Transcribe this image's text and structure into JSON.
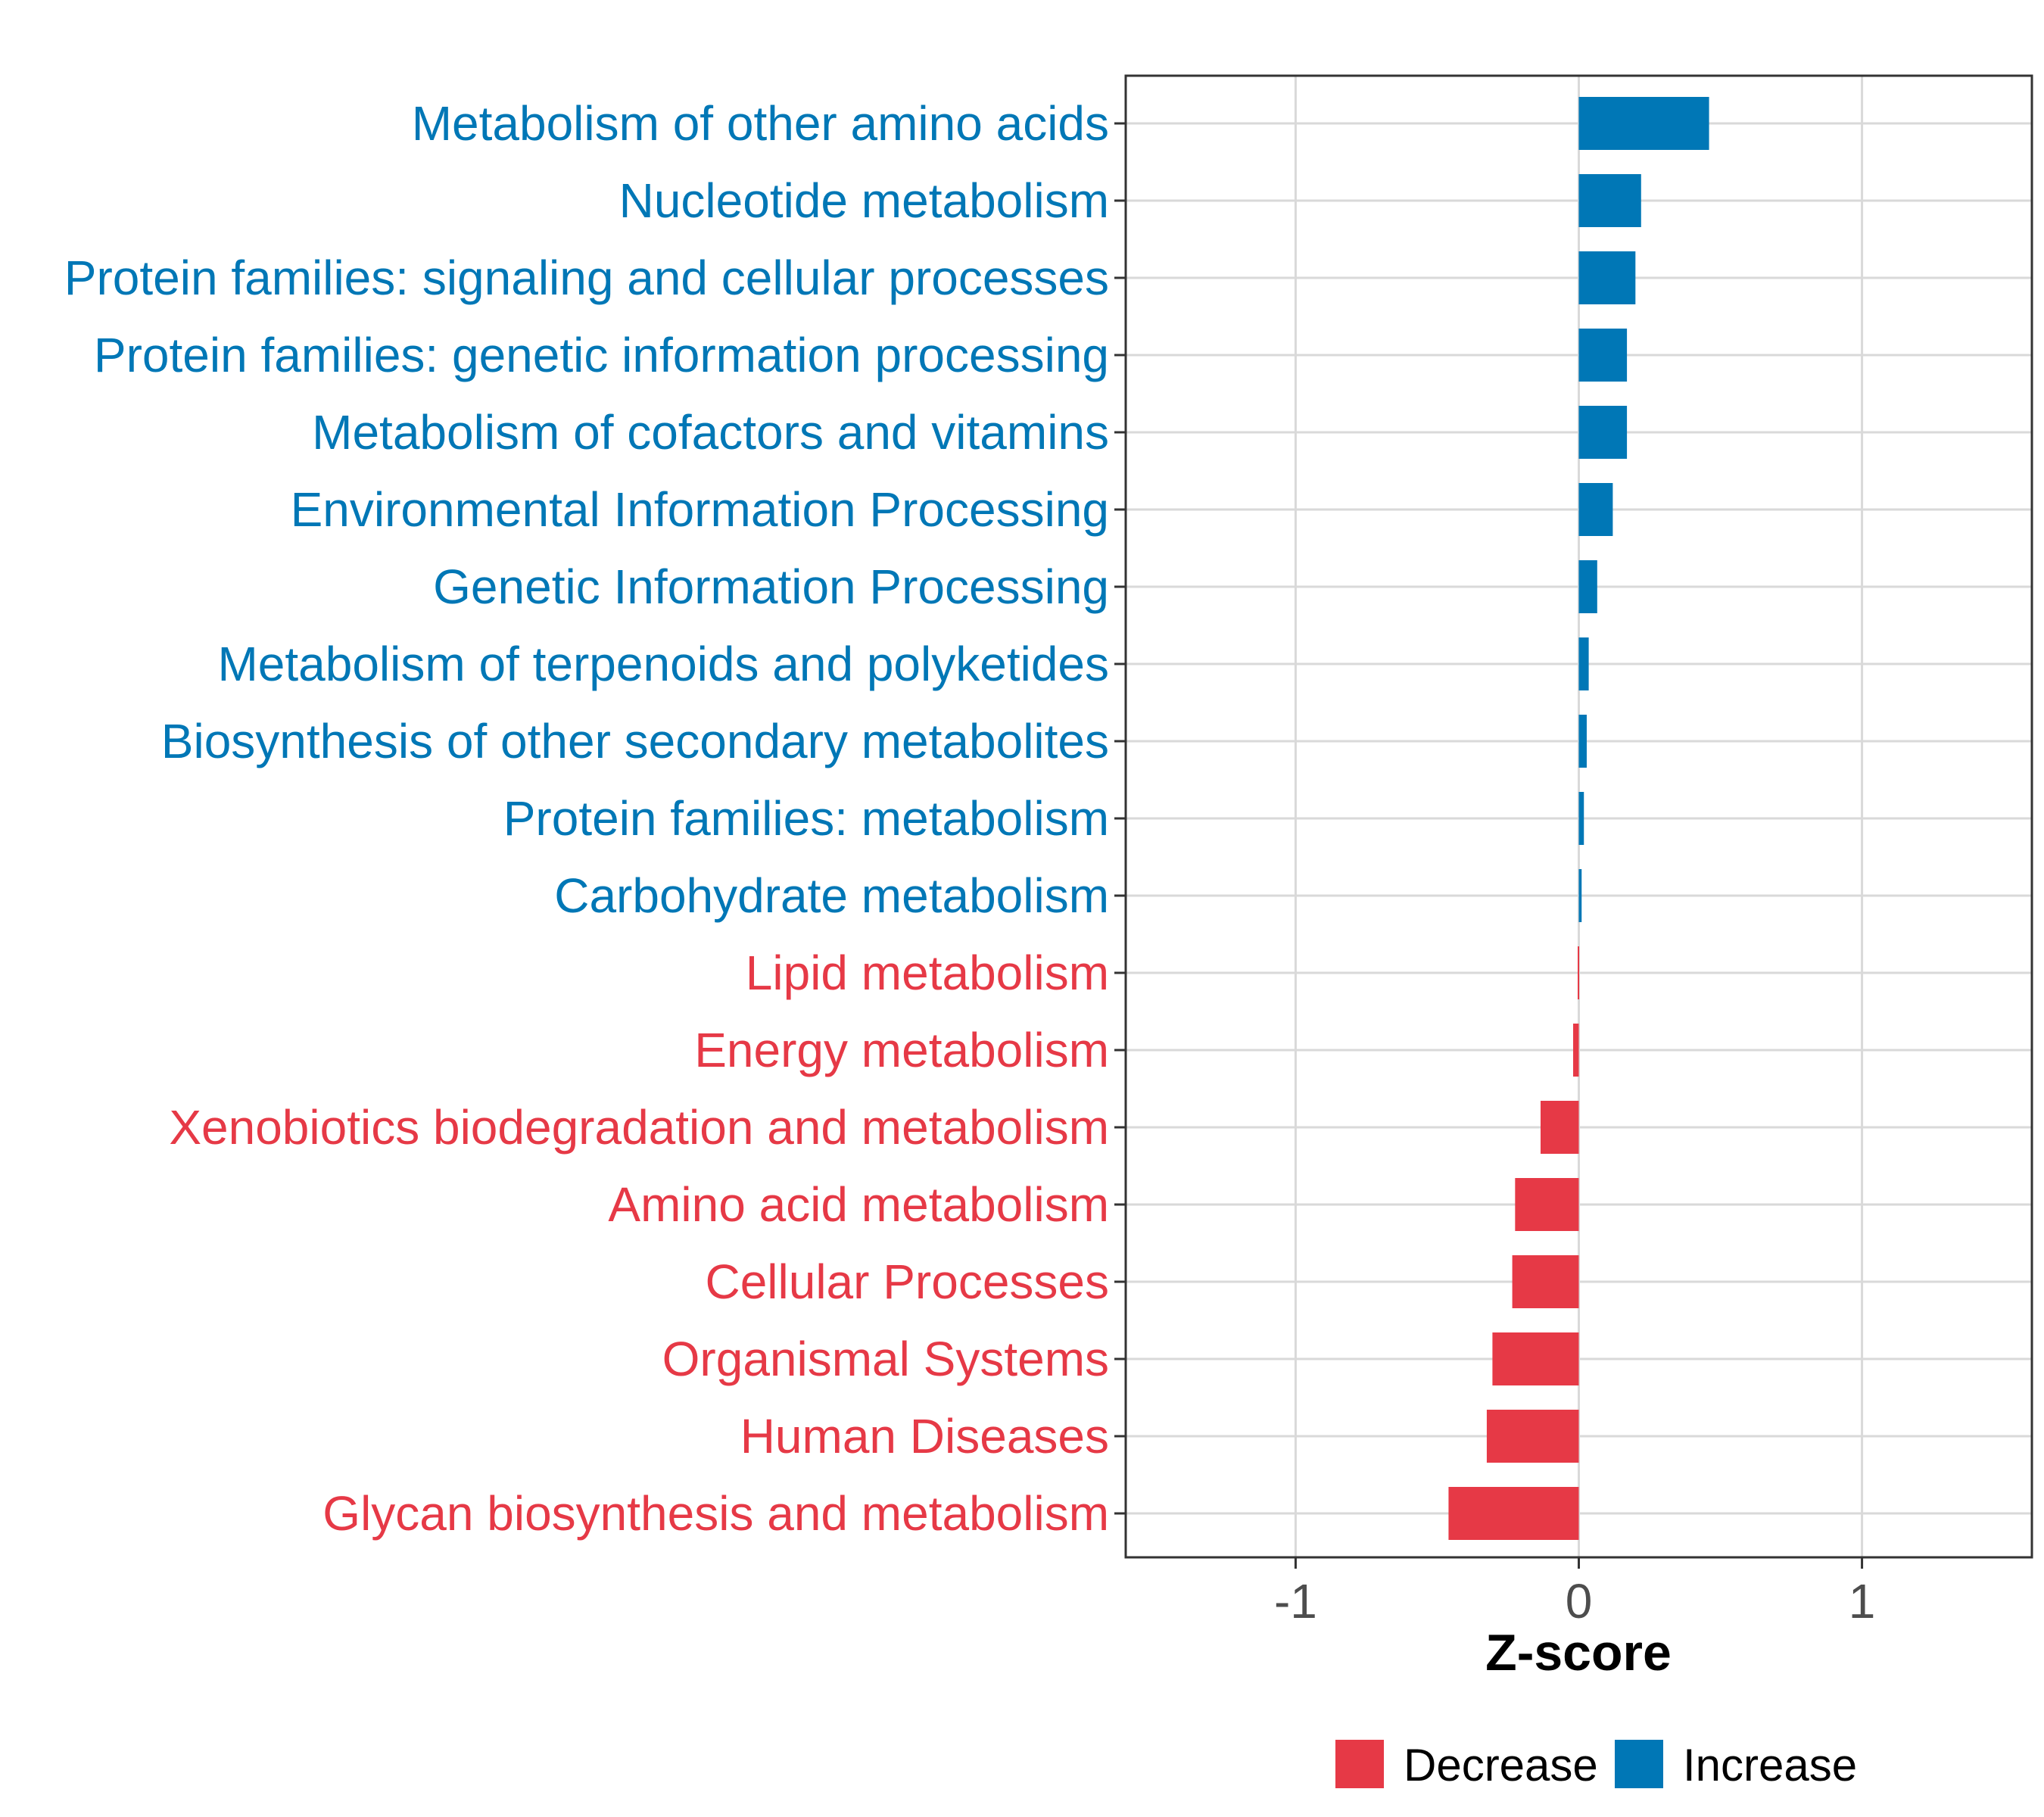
{
  "chart_data": {
    "type": "bar",
    "orientation": "horizontal",
    "title": "",
    "xlabel": "Z-score",
    "ylabel": "",
    "xlim": [
      -1.6,
      1.6
    ],
    "xticks": [
      -1,
      0,
      1
    ],
    "xtick_labels": [
      "-1",
      "0",
      "1"
    ],
    "grid": true,
    "categories": [
      "Metabolism of other amino acids",
      "Nucleotide metabolism",
      "Protein families: signaling and cellular processes",
      "Protein families: genetic information processing",
      "Metabolism of cofactors and vitamins",
      "Environmental Information Processing",
      "Genetic Information Processing",
      "Metabolism of terpenoids and polyketides",
      "Biosynthesis of other secondary metabolites",
      "Protein families: metabolism",
      "Carbohydrate metabolism",
      "Lipid metabolism",
      "Energy metabolism",
      "Xenobiotics biodegradation and metabolism",
      "Amino acid metabolism",
      "Cellular Processes",
      "Organismal Systems",
      "Human Diseases",
      "Glycan biosynthesis and metabolism"
    ],
    "values": [
      0.46,
      0.22,
      0.2,
      0.17,
      0.17,
      0.12,
      0.065,
      0.035,
      0.028,
      0.018,
      0.01,
      -0.004,
      -0.02,
      -0.135,
      -0.225,
      -0.235,
      -0.305,
      -0.325,
      -0.46
    ],
    "colors": {
      "Decrease": "#e63946",
      "Increase": "#0077b6"
    },
    "legend": {
      "position": "bottom",
      "entries": [
        {
          "label": "Decrease",
          "color": "#e63946"
        },
        {
          "label": "Increase",
          "color": "#0077b6"
        }
      ]
    }
  }
}
